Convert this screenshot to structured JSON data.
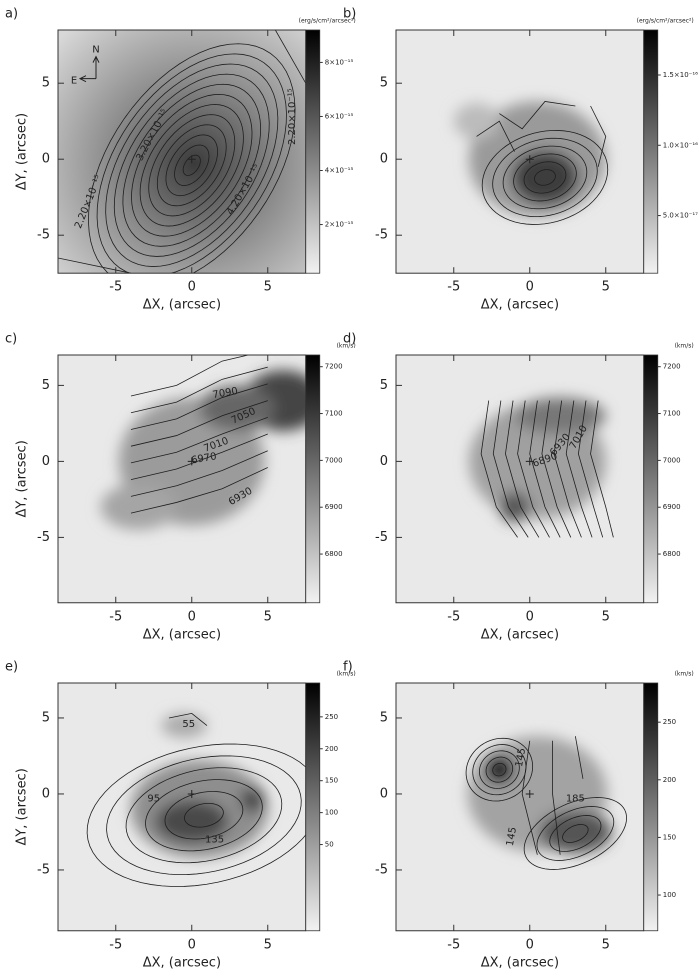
{
  "chart_data": [
    {
      "type": "contour",
      "panel_label": "a)",
      "xlabel": "ΔX, (arcsec)",
      "ylabel": "ΔY, (arcsec)",
      "xlim": [
        -8.8,
        7.5
      ],
      "ylim": [
        -7.5,
        8.5
      ],
      "xticks": [
        -5,
        0,
        5
      ],
      "yticks": [
        -5,
        0,
        5
      ],
      "colorbar_label": "(erg/s/cm²/arcsec²)",
      "clim": [
        2e-16,
        9.2e-15
      ],
      "cticks": [
        {
          "value": 8e-15,
          "label": "8×10⁻¹⁵"
        },
        {
          "value": 6e-15,
          "label": "6×10⁻¹⁵"
        },
        {
          "value": 4e-15,
          "label": "4×10⁻¹⁵"
        },
        {
          "value": 2e-15,
          "label": "2×10⁻¹⁵"
        }
      ],
      "contour_labels": [
        "2.20×10⁻¹⁵",
        "3.20×10⁻¹⁵",
        "4.20×10⁻¹⁵",
        "2.20×10⁻¹⁵"
      ],
      "compass": [
        "N",
        "E"
      ]
    },
    {
      "type": "contour",
      "panel_label": "b)",
      "xlabel": "ΔX, (arcsec)",
      "xlim": [
        -8.8,
        7.5
      ],
      "ylim": [
        -7.5,
        8.5
      ],
      "xticks": [
        -5,
        0,
        5
      ],
      "yticks": [
        -5,
        0,
        5
      ],
      "colorbar_label": "(erg/s/cm²/arcsec²)",
      "clim": [
        9e-18,
        1.82e-16
      ],
      "cticks": [
        {
          "value": 1.5e-16,
          "label": "1.5×10⁻¹⁶"
        },
        {
          "value": 1e-16,
          "label": "1.0×10⁻¹⁶"
        },
        {
          "value": 5e-17,
          "label": "5.0×10⁻¹⁷"
        }
      ],
      "contour_labels": []
    },
    {
      "type": "contour",
      "panel_label": "c)",
      "xlabel": "ΔX, (arcsec)",
      "ylabel": "ΔY, (arcsec)",
      "xlim": [
        -8.8,
        7.5
      ],
      "ylim": [
        -9.3,
        7.0
      ],
      "xticks": [
        -5,
        0,
        5
      ],
      "yticks": [
        -5,
        0,
        5
      ],
      "colorbar_label": "(km/s)",
      "clim": [
        6696,
        7225
      ],
      "cticks": [
        7200,
        7100,
        7000,
        6900,
        6800
      ],
      "contour_labels": [
        "7090",
        "7050",
        "7010",
        "6970",
        "6930"
      ]
    },
    {
      "type": "contour",
      "panel_label": "d)",
      "xlabel": "ΔX, (arcsec)",
      "xlim": [
        -8.8,
        7.5
      ],
      "ylim": [
        -9.3,
        7.0
      ],
      "xticks": [
        -5,
        0,
        5
      ],
      "yticks": [
        -5,
        0,
        5
      ],
      "colorbar_label": "(km/s)",
      "clim": [
        6696,
        7225
      ],
      "cticks": [
        7200,
        7100,
        7000,
        6900,
        6800
      ],
      "contour_labels": [
        "6930",
        "6890",
        "7010"
      ]
    },
    {
      "type": "contour",
      "panel_label": "e)",
      "xlabel": "ΔX, (arcsec)",
      "ylabel": "ΔY, (arcsec)",
      "xlim": [
        -8.8,
        7.5
      ],
      "ylim": [
        -9.0,
        7.3
      ],
      "xticks": [
        -5,
        0,
        5
      ],
      "yticks": [
        -5,
        0,
        5
      ],
      "colorbar_label": "(km/s)",
      "clim": [
        -85,
        303
      ],
      "cticks": [
        250,
        200,
        150,
        100,
        50
      ],
      "contour_labels": [
        "55",
        "95",
        "135"
      ]
    },
    {
      "type": "contour",
      "panel_label": "f)",
      "xlabel": "ΔX, (arcsec)",
      "xlim": [
        -8.8,
        7.5
      ],
      "ylim": [
        -9.0,
        7.3
      ],
      "xticks": [
        -5,
        0,
        5
      ],
      "yticks": [
        -5,
        0,
        5
      ],
      "colorbar_label": "(km/s)",
      "clim": [
        69,
        284
      ],
      "cticks": [
        250,
        200,
        150,
        100
      ],
      "contour_labels": [
        "145",
        "145",
        "185"
      ]
    }
  ]
}
